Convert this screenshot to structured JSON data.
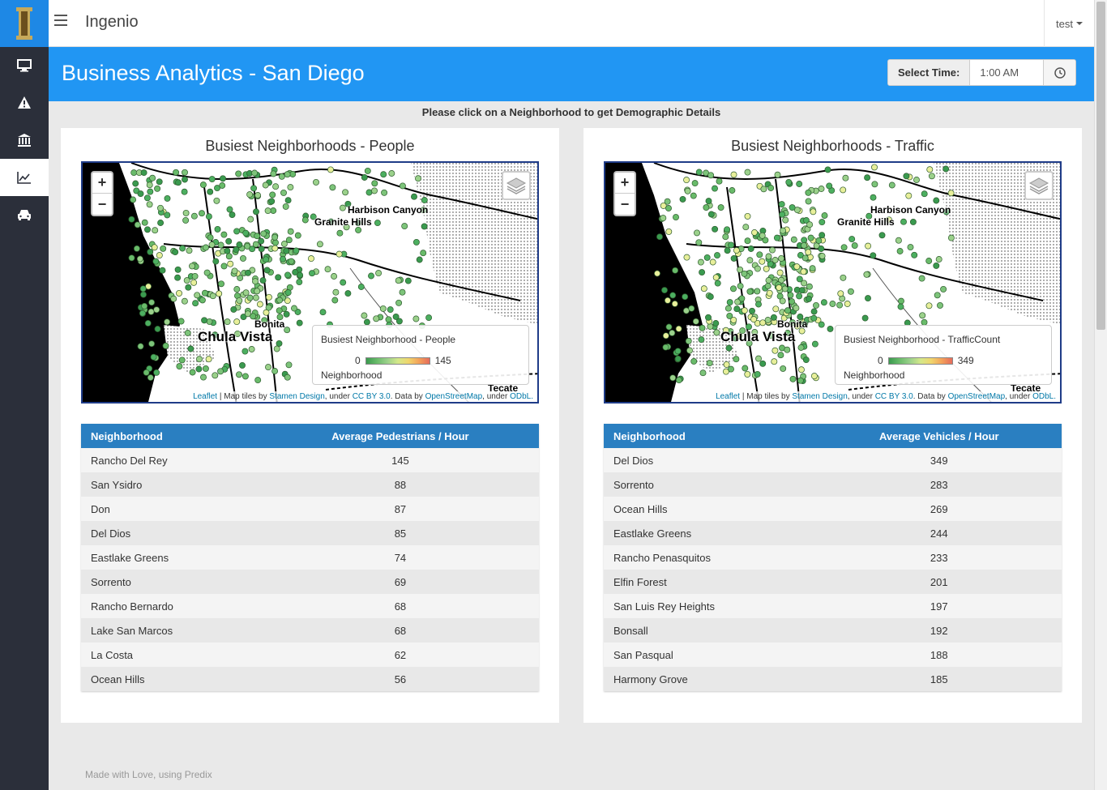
{
  "app": {
    "title": "Ingenio",
    "user": "test"
  },
  "sidebar": {
    "items": [
      {
        "name": "monitor-icon",
        "active": false
      },
      {
        "name": "warning-icon",
        "active": false
      },
      {
        "name": "bank-icon",
        "active": false
      },
      {
        "name": "line-chart-icon",
        "active": true
      },
      {
        "name": "car-icon",
        "active": false
      }
    ]
  },
  "header": {
    "title": "Business Analytics - San Diego",
    "time_label": "Select Time:",
    "time_value": "1:00 AM"
  },
  "instruction": "Please click on a Neighborhood to get Demographic Details",
  "map_common": {
    "labels": {
      "harbison": "Harbison Canyon",
      "granite": "Granite Hills",
      "bonita": "Bonita",
      "chula": "Chula Vista",
      "tecate": "Tecate"
    },
    "attribution": {
      "leaflet": "Leaflet",
      "tiles_by": " | Map tiles by ",
      "stamen": "Stamen Design",
      "under": ", under ",
      "cc": "CC BY 3.0",
      "data_by": ". Data by ",
      "osm": "OpenStreetMap",
      "under2": ", under ",
      "odbl": "ODbL."
    }
  },
  "people_panel": {
    "title": "Busiest Neighborhoods - People",
    "legend_title": "Busiest Neighborhood - People",
    "legend_min": "0",
    "legend_max": "145",
    "legend_sub": "Neighborhood",
    "table": {
      "headers": [
        "Neighborhood",
        "Average Pedestrians / Hour"
      ],
      "rows": [
        [
          "Rancho Del Rey",
          "145"
        ],
        [
          "San Ysidro",
          "88"
        ],
        [
          "Don",
          "87"
        ],
        [
          "Del Dios",
          "85"
        ],
        [
          "Eastlake Greens",
          "74"
        ],
        [
          "Sorrento",
          "69"
        ],
        [
          "Rancho Bernardo",
          "68"
        ],
        [
          "Lake San Marcos",
          "68"
        ],
        [
          "La Costa",
          "62"
        ],
        [
          "Ocean Hills",
          "56"
        ]
      ]
    }
  },
  "traffic_panel": {
    "title": "Busiest Neighborhoods - Traffic",
    "legend_title": "Busiest Neighborhood - TrafficCount",
    "legend_min": "0",
    "legend_max": "349",
    "legend_sub": "Neighborhood",
    "table": {
      "headers": [
        "Neighborhood",
        "Average Vehicles / Hour"
      ],
      "rows": [
        [
          "Del Dios",
          "349"
        ],
        [
          "Sorrento",
          "283"
        ],
        [
          "Ocean Hills",
          "269"
        ],
        [
          "Eastlake Greens",
          "244"
        ],
        [
          "Rancho Penasquitos",
          "233"
        ],
        [
          "Elfin Forest",
          "201"
        ],
        [
          "San Luis Rey Heights",
          "197"
        ],
        [
          "Bonsall",
          "192"
        ],
        [
          "San Pasqual",
          "188"
        ],
        [
          "Harmony Grove",
          "185"
        ]
      ]
    }
  },
  "zoom": {
    "in": "+",
    "out": "−"
  },
  "footer": "Made with Love, using Predix",
  "colors": {
    "accent": "#2196f3",
    "sidebar": "#2b2f3a",
    "table_header": "#2a7fc1"
  }
}
